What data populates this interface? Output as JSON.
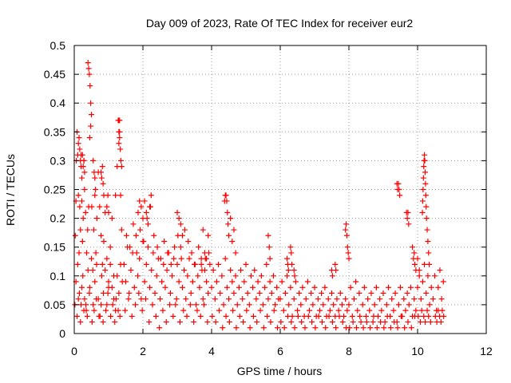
{
  "chart_data": {
    "type": "scatter",
    "title": "Day 009 of 2023, Rate Of TEC Index for receiver eur2",
    "xlabel": "GPS time / hours",
    "ylabel": "ROTI / TECUs",
    "xlim": [
      0,
      12
    ],
    "ylim": [
      0,
      0.5
    ],
    "xticks": [
      "0",
      "2",
      "4",
      "6",
      "8",
      "10",
      "12"
    ],
    "yticks": [
      "0",
      "0.05",
      "0.1",
      "0.15",
      "0.2",
      "0.25",
      "0.3",
      "0.35",
      "0.4",
      "0.45",
      "0.5"
    ],
    "grid": true,
    "marker": "+",
    "color": "#ff0000",
    "series": [
      {
        "x": [
          0.02,
          0.03,
          0.05,
          0.06,
          0.08,
          0.1,
          0.12,
          0.14,
          0.16,
          0.18,
          0.2,
          0.22,
          0.24,
          0.26,
          0.28,
          0.3,
          0.33,
          0.36,
          0.39,
          0.42,
          0.45,
          0.48,
          0.51,
          0.54,
          0.57,
          0.6,
          0.63,
          0.66,
          0.7,
          0.74,
          0.78,
          0.82,
          0.86,
          0.9,
          0.95,
          1.0,
          1.05,
          1.1,
          1.15,
          1.2,
          1.25,
          1.3,
          1.32,
          1.35,
          1.38,
          0.05,
          0.1,
          0.15,
          0.2,
          0.25,
          0.3,
          0.35,
          0.4,
          0.45,
          0.5,
          0.55,
          0.6,
          0.65,
          0.7,
          0.75,
          0.8,
          0.85,
          0.9,
          0.95,
          1.0,
          1.05,
          1.1,
          1.15,
          1.2,
          1.25,
          1.3,
          1.35,
          1.4,
          0.08,
          0.12,
          0.18,
          0.22,
          0.28,
          0.34,
          0.38,
          0.44,
          0.52,
          0.58,
          0.64,
          0.72,
          0.78,
          0.84,
          0.92,
          0.98,
          1.06,
          1.12,
          1.18,
          1.22,
          1.28,
          1.33,
          0.4,
          0.42,
          0.44,
          0.46,
          0.48,
          0.5,
          0.12,
          0.14,
          0.16,
          0.18,
          0.2,
          0.22,
          0.24,
          0.26,
          0.28,
          0.3,
          0.55,
          0.58,
          0.6,
          0.62,
          0.78,
          0.8,
          0.82,
          0.84,
          0.86,
          0.95,
          0.98,
          1.0,
          1.3,
          1.32,
          1.34,
          1.36,
          1.38,
          1.28,
          1.3,
          1.32,
          1.45,
          1.5,
          1.55,
          1.6,
          1.65,
          1.7,
          1.75,
          1.8,
          1.85,
          1.9,
          1.95,
          2.0,
          2.05,
          2.1,
          2.15,
          2.2,
          2.25,
          2.3,
          2.35,
          2.4,
          2.45,
          2.5,
          2.55,
          2.6,
          2.65,
          2.7,
          2.75,
          2.8,
          2.85,
          2.9,
          2.95,
          3.0,
          3.05,
          3.1,
          3.15,
          3.2,
          3.25,
          3.3,
          3.35,
          3.4,
          3.45,
          3.5,
          3.55,
          3.6,
          3.65,
          3.7,
          3.75,
          3.8,
          3.85,
          3.9,
          3.95,
          1.48,
          1.58,
          1.68,
          1.78,
          1.88,
          1.98,
          2.08,
          2.18,
          2.28,
          2.38,
          2.48,
          2.58,
          2.68,
          2.78,
          2.88,
          2.98,
          3.08,
          3.18,
          3.28,
          3.38,
          3.48,
          3.58,
          3.68,
          3.78,
          3.88,
          1.52,
          1.62,
          1.72,
          1.82,
          1.92,
          2.02,
          2.12,
          2.22,
          2.32,
          2.42,
          2.52,
          2.62,
          2.72,
          2.82,
          2.92,
          3.02,
          3.12,
          3.22,
          3.32,
          3.42,
          3.52,
          3.62,
          3.72,
          3.82,
          3.92,
          1.86,
          1.9,
          1.95,
          2.0,
          2.05,
          2.1,
          2.15,
          2.2,
          2.24,
          3.0,
          3.05,
          3.1,
          3.15,
          3.7,
          3.75,
          3.8,
          3.85,
          3.9,
          4.0,
          4.05,
          4.1,
          4.15,
          4.2,
          4.25,
          4.3,
          4.35,
          4.4,
          4.45,
          4.5,
          4.55,
          4.6,
          4.65,
          4.7,
          4.75,
          4.8,
          4.85,
          4.9,
          4.95,
          5.0,
          5.05,
          5.1,
          5.15,
          5.2,
          5.25,
          5.3,
          5.35,
          5.4,
          5.45,
          5.5,
          5.55,
          5.6,
          5.65,
          5.7,
          5.75,
          5.8,
          5.85,
          5.9,
          5.95,
          4.02,
          4.12,
          4.22,
          4.32,
          4.42,
          4.52,
          4.62,
          4.72,
          4.82,
          4.92,
          5.02,
          5.12,
          5.22,
          5.32,
          5.42,
          5.52,
          5.62,
          5.72,
          5.82,
          5.92,
          4.38,
          4.4,
          4.42,
          4.44,
          4.46,
          4.48,
          4.5,
          4.55,
          4.6,
          4.65,
          4.7,
          6.0,
          6.05,
          6.1,
          6.15,
          6.2,
          6.25,
          6.3,
          6.35,
          6.4,
          6.45,
          6.5,
          6.55,
          6.6,
          6.65,
          6.7,
          6.75,
          6.8,
          6.85,
          6.9,
          6.95,
          7.0,
          7.05,
          7.1,
          7.15,
          7.2,
          7.25,
          7.3,
          7.35,
          7.4,
          7.45,
          7.5,
          7.55,
          7.6,
          7.65,
          7.7,
          7.75,
          7.8,
          7.85,
          7.9,
          7.95,
          6.02,
          6.12,
          6.22,
          6.32,
          6.42,
          6.52,
          6.62,
          6.72,
          6.82,
          6.92,
          7.02,
          7.12,
          7.22,
          7.32,
          7.42,
          7.52,
          7.62,
          7.72,
          7.82,
          7.92,
          5.65,
          5.68,
          5.7,
          6.2,
          6.22,
          6.24,
          6.3,
          6.32,
          6.34,
          6.4,
          6.42,
          7.5,
          7.52,
          7.6,
          7.62,
          8.0,
          8.05,
          8.1,
          8.15,
          8.2,
          8.25,
          8.3,
          8.35,
          8.4,
          8.45,
          8.5,
          8.55,
          8.6,
          8.65,
          8.7,
          8.75,
          8.8,
          8.85,
          8.9,
          8.95,
          9.0,
          9.05,
          9.1,
          9.15,
          9.2,
          9.25,
          9.3,
          9.35,
          9.4,
          9.45,
          9.5,
          9.55,
          9.6,
          9.65,
          9.7,
          9.75,
          9.8,
          9.85,
          9.9,
          9.95,
          8.02,
          8.12,
          8.22,
          8.32,
          8.42,
          8.52,
          8.62,
          8.72,
          8.82,
          8.92,
          9.02,
          9.12,
          9.22,
          9.32,
          9.42,
          9.52,
          9.62,
          9.72,
          9.82,
          9.92,
          7.9,
          7.92,
          7.94,
          7.96,
          7.98,
          8.0,
          9.4,
          9.42,
          9.44,
          9.46,
          9.48,
          9.68,
          9.7,
          9.72,
          9.74,
          10.0,
          10.05,
          10.1,
          10.15,
          10.2,
          10.25,
          10.3,
          10.35,
          10.4,
          10.45,
          10.5,
          10.55,
          10.6,
          10.65,
          10.7,
          10.75,
          10.02,
          10.08,
          10.12,
          10.18,
          10.22,
          10.28,
          10.32,
          10.38,
          10.52,
          10.56,
          10.6,
          10.64,
          10.68,
          10.72,
          10.76,
          10.14,
          10.15,
          10.16,
          10.17,
          10.18,
          10.19,
          10.2,
          10.21,
          10.22,
          10.23,
          10.24,
          10.25,
          10.26,
          10.28,
          10.3,
          10.32,
          10.34,
          9.85,
          9.88,
          9.9,
          9.92,
          9.95,
          10.0,
          10.05
        ],
        "y": [
          0.05,
          0.17,
          0.23,
          0.3,
          0.35,
          0.31,
          0.24,
          0.14,
          0.22,
          0.18,
          0.31,
          0.23,
          0.16,
          0.2,
          0.3,
          0.25,
          0.21,
          0.14,
          0.18,
          0.22,
          0.34,
          0.36,
          0.22,
          0.11,
          0.18,
          0.24,
          0.14,
          0.2,
          0.28,
          0.22,
          0.17,
          0.12,
          0.16,
          0.21,
          0.13,
          0.08,
          0.15,
          0.2,
          0.1,
          0.24,
          0.29,
          0.33,
          0.37,
          0.24,
          0.18,
          0.09,
          0.12,
          0.07,
          0.05,
          0.1,
          0.06,
          0.04,
          0.11,
          0.08,
          0.13,
          0.05,
          0.09,
          0.12,
          0.06,
          0.03,
          0.1,
          0.07,
          0.11,
          0.05,
          0.09,
          0.12,
          0.08,
          0.06,
          0.04,
          0.1,
          0.07,
          0.12,
          0.09,
          0.03,
          0.06,
          0.02,
          0.08,
          0.04,
          0.05,
          0.03,
          0.07,
          0.02,
          0.04,
          0.06,
          0.03,
          0.05,
          0.02,
          0.04,
          0.07,
          0.03,
          0.05,
          0.02,
          0.06,
          0.04,
          0.03,
          0.47,
          0.46,
          0.45,
          0.43,
          0.4,
          0.38,
          0.33,
          0.34,
          0.32,
          0.3,
          0.29,
          0.27,
          0.31,
          0.29,
          0.3,
          0.28,
          0.3,
          0.28,
          0.27,
          0.25,
          0.28,
          0.27,
          0.29,
          0.26,
          0.24,
          0.22,
          0.24,
          0.21,
          0.35,
          0.34,
          0.32,
          0.3,
          0.29,
          0.37,
          0.37,
          0.35,
          0.12,
          0.09,
          0.15,
          0.07,
          0.11,
          0.14,
          0.08,
          0.17,
          0.1,
          0.13,
          0.06,
          0.16,
          0.09,
          0.12,
          0.15,
          0.08,
          0.11,
          0.14,
          0.07,
          0.1,
          0.13,
          0.06,
          0.09,
          0.12,
          0.08,
          0.11,
          0.14,
          0.07,
          0.1,
          0.13,
          0.05,
          0.12,
          0.09,
          0.15,
          0.08,
          0.11,
          0.06,
          0.1,
          0.13,
          0.07,
          0.09,
          0.12,
          0.05,
          0.1,
          0.08,
          0.13,
          0.06,
          0.11,
          0.09,
          0.07,
          0.12,
          0.04,
          0.06,
          0.03,
          0.05,
          0.07,
          0.04,
          0.06,
          0.02,
          0.05,
          0.03,
          0.01,
          0.04,
          0.02,
          0.05,
          0.03,
          0.06,
          0.02,
          0.04,
          0.03,
          0.05,
          0.02,
          0.04,
          0.03,
          0.05,
          0.02,
          0.17,
          0.15,
          0.19,
          0.14,
          0.18,
          0.16,
          0.2,
          0.22,
          0.17,
          0.15,
          0.13,
          0.16,
          0.14,
          0.12,
          0.15,
          0.17,
          0.13,
          0.18,
          0.16,
          0.14,
          0.12,
          0.15,
          0.11,
          0.13,
          0.14,
          0.21,
          0.23,
          0.22,
          0.2,
          0.23,
          0.21,
          0.19,
          0.22,
          0.24,
          0.21,
          0.2,
          0.19,
          0.17,
          0.12,
          0.18,
          0.14,
          0.13,
          0.17,
          0.08,
          0.11,
          0.06,
          0.09,
          0.12,
          0.07,
          0.1,
          0.05,
          0.13,
          0.08,
          0.06,
          0.11,
          0.09,
          0.07,
          0.1,
          0.05,
          0.08,
          0.11,
          0.06,
          0.09,
          0.12,
          0.07,
          0.05,
          0.1,
          0.08,
          0.11,
          0.06,
          0.09,
          0.07,
          0.1,
          0.05,
          0.08,
          0.12,
          0.06,
          0.09,
          0.07,
          0.1,
          0.05,
          0.08,
          0.06,
          0.03,
          0.02,
          0.04,
          0.01,
          0.03,
          0.02,
          0.04,
          0.01,
          0.03,
          0.02,
          0.04,
          0.01,
          0.03,
          0.02,
          0.04,
          0.01,
          0.03,
          0.02,
          0.04,
          0.01,
          0.23,
          0.24,
          0.24,
          0.23,
          0.21,
          0.19,
          0.17,
          0.2,
          0.16,
          0.18,
          0.14,
          0.06,
          0.09,
          0.04,
          0.07,
          0.1,
          0.05,
          0.08,
          0.03,
          0.06,
          0.09,
          0.04,
          0.07,
          0.05,
          0.08,
          0.03,
          0.06,
          0.09,
          0.04,
          0.07,
          0.05,
          0.08,
          0.03,
          0.06,
          0.04,
          0.07,
          0.05,
          0.08,
          0.03,
          0.06,
          0.04,
          0.07,
          0.05,
          0.03,
          0.06,
          0.04,
          0.07,
          0.05,
          0.03,
          0.06,
          0.04,
          0.02,
          0.01,
          0.03,
          0.02,
          0.01,
          0.03,
          0.02,
          0.01,
          0.03,
          0.02,
          0.01,
          0.03,
          0.02,
          0.01,
          0.03,
          0.02,
          0.01,
          0.03,
          0.02,
          0.01,
          0.17,
          0.15,
          0.13,
          0.13,
          0.12,
          0.11,
          0.15,
          0.14,
          0.12,
          0.11,
          0.1,
          0.11,
          0.1,
          0.12,
          0.11,
          0.05,
          0.08,
          0.03,
          0.06,
          0.09,
          0.04,
          0.07,
          0.02,
          0.05,
          0.08,
          0.03,
          0.06,
          0.04,
          0.07,
          0.02,
          0.05,
          0.08,
          0.03,
          0.06,
          0.04,
          0.07,
          0.02,
          0.05,
          0.08,
          0.03,
          0.06,
          0.04,
          0.07,
          0.02,
          0.05,
          0.08,
          0.03,
          0.06,
          0.04,
          0.07,
          0.05,
          0.08,
          0.03,
          0.06,
          0.04,
          0.01,
          0.02,
          0.01,
          0.03,
          0.01,
          0.02,
          0.01,
          0.03,
          0.01,
          0.02,
          0.01,
          0.03,
          0.01,
          0.02,
          0.01,
          0.03,
          0.01,
          0.02,
          0.01,
          0.03,
          0.18,
          0.19,
          0.17,
          0.15,
          0.14,
          0.13,
          0.26,
          0.25,
          0.26,
          0.25,
          0.24,
          0.21,
          0.2,
          0.21,
          0.19,
          0.08,
          0.11,
          0.06,
          0.09,
          0.12,
          0.07,
          0.1,
          0.05,
          0.08,
          0.06,
          0.1,
          0.04,
          0.08,
          0.11,
          0.06,
          0.09,
          0.03,
          0.02,
          0.04,
          0.03,
          0.02,
          0.04,
          0.03,
          0.02,
          0.03,
          0.02,
          0.04,
          0.03,
          0.02,
          0.04,
          0.03,
          0.21,
          0.23,
          0.25,
          0.27,
          0.29,
          0.3,
          0.31,
          0.3,
          0.28,
          0.26,
          0.24,
          0.22,
          0.2,
          0.18,
          0.16,
          0.14,
          0.12,
          0.15,
          0.13,
          0.14,
          0.12,
          0.11,
          0.13,
          0.1
        ]
      }
    ]
  }
}
